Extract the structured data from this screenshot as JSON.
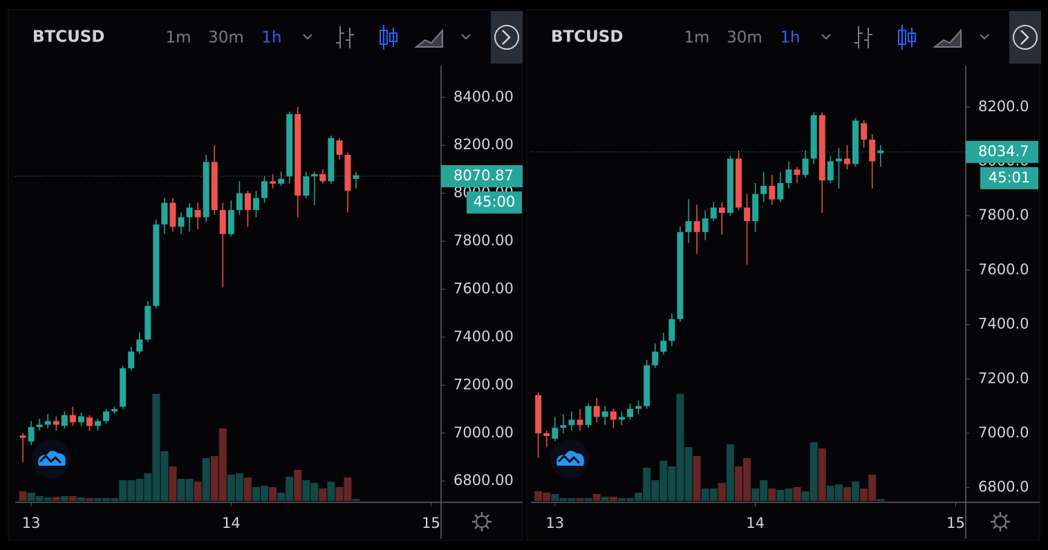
{
  "chart_data": [
    {
      "type": "candlestick",
      "title": "BTCUSD",
      "intervals": [
        "1m",
        "30m",
        "1h"
      ],
      "active_interval": 2,
      "x": [
        12.9583,
        13,
        13.0417,
        13.0833,
        13.125,
        13.1667,
        13.2083,
        13.25,
        13.2917,
        13.3333,
        13.375,
        13.4167,
        13.4583,
        13.5,
        13.5417,
        13.5833,
        13.625,
        13.6667,
        13.7083,
        13.75,
        13.7917,
        13.8333,
        13.875,
        13.9167,
        13.9583,
        14,
        14.0417,
        14.0833,
        14.125,
        14.1667,
        14.2083,
        14.25,
        14.2917,
        14.3333,
        14.375,
        14.4167,
        14.4583,
        14.5,
        14.5417,
        14.5833,
        14.625
      ],
      "open": [
        6990,
        6965,
        7025,
        7035,
        7050,
        7030,
        7075,
        7045,
        7065,
        7030,
        7050,
        7090,
        7110,
        7270,
        7340,
        7390,
        7530,
        7870,
        7960,
        7860,
        7900,
        7930,
        7900,
        8130,
        7930,
        7830,
        7930,
        8000,
        7930,
        7980,
        8050,
        8040,
        8070,
        8330,
        7990,
        8070,
        8080,
        8050,
        8220,
        8160,
        8060
      ],
      "high": [
        7000,
        7050,
        7060,
        7080,
        7070,
        7090,
        7110,
        7085,
        7075,
        7060,
        7100,
        7110,
        7280,
        7360,
        7420,
        7550,
        7890,
        7980,
        7980,
        7920,
        7960,
        7960,
        8160,
        8200,
        7960,
        7970,
        8050,
        8010,
        8010,
        8070,
        8080,
        8090,
        8340,
        8360,
        8090,
        8090,
        8100,
        8240,
        8230,
        8170,
        8090
      ],
      "low": [
        6880,
        6950,
        7010,
        7020,
        7010,
        7020,
        7030,
        7030,
        7010,
        7010,
        7040,
        7080,
        7100,
        7260,
        7330,
        7380,
        7520,
        7830,
        7840,
        7830,
        7840,
        7850,
        7880,
        7910,
        7610,
        7820,
        7910,
        7860,
        7900,
        7960,
        8020,
        8030,
        8040,
        7900,
        7980,
        7950,
        8040,
        8040,
        8140,
        7920,
        8020
      ],
      "close": [
        6980,
        7025,
        7035,
        7050,
        7035,
        7075,
        7045,
        7070,
        7030,
        7050,
        7090,
        7100,
        7270,
        7340,
        7390,
        7530,
        7870,
        7960,
        7860,
        7900,
        7940,
        7900,
        8130,
        7930,
        7830,
        7930,
        8000,
        7930,
        7980,
        8050,
        8040,
        8060,
        8330,
        7990,
        8070,
        8080,
        8050,
        8230,
        8160,
        8010,
        8075
      ],
      "volume": [
        14,
        12,
        7,
        5,
        6,
        7,
        7,
        5,
        4,
        4,
        4,
        4,
        30,
        30,
        32,
        40,
        155,
        72,
        50,
        32,
        32,
        28,
        62,
        65,
        105,
        38,
        40,
        34,
        20,
        22,
        20,
        12,
        35,
        45,
        30,
        26,
        18,
        28,
        20,
        34,
        3
      ],
      "xlim": [
        12.92,
        15.05
      ],
      "xticks": [
        13,
        14,
        15
      ],
      "ylim": [
        6717,
        8532
      ],
      "yticks": [
        {
          "value": 6800,
          "label": "6800.00"
        },
        {
          "value": 7000,
          "label": "7000.00"
        },
        {
          "value": 7200,
          "label": "7200.00"
        },
        {
          "value": 7400,
          "label": "7400.00"
        },
        {
          "value": 7600,
          "label": "7600.00"
        },
        {
          "value": 7800,
          "label": "7800.00"
        },
        {
          "value": 8000,
          "label": "8000.00"
        },
        {
          "value": 8200,
          "label": "8200.00"
        },
        {
          "value": 8400,
          "label": "8400.00"
        }
      ],
      "last_price": 8070.87,
      "countdown": "45:00",
      "up_color": "#26a69a",
      "down_color": "#ef5350",
      "active_color": "#2962ff"
    },
    {
      "type": "candlestick",
      "title": "BTCUSD",
      "intervals": [
        "1m",
        "30m",
        "1h"
      ],
      "active_interval": 2,
      "x": [
        12.9167,
        12.9583,
        13,
        13.0417,
        13.0833,
        13.125,
        13.1667,
        13.2083,
        13.25,
        13.2917,
        13.3333,
        13.375,
        13.4167,
        13.4583,
        13.5,
        13.5417,
        13.5833,
        13.625,
        13.6667,
        13.7083,
        13.75,
        13.7917,
        13.8333,
        13.875,
        13.9167,
        13.9583,
        14,
        14.0417,
        14.0833,
        14.125,
        14.1667,
        14.2083,
        14.25,
        14.2917,
        14.3333,
        14.375,
        14.4167,
        14.4583,
        14.5,
        14.5417,
        14.5833,
        14.625
      ],
      "open": [
        7140,
        7000,
        6980,
        7020,
        7030,
        7050,
        7030,
        7100,
        7060,
        7080,
        7050,
        7060,
        7090,
        7100,
        7250,
        7300,
        7340,
        7420,
        7740,
        7780,
        7740,
        7790,
        7830,
        7810,
        8010,
        7830,
        7780,
        7880,
        7910,
        7860,
        7920,
        7970,
        7950,
        8010,
        8170,
        7930,
        8000,
        8010,
        7990,
        8140,
        8080,
        8030
      ],
      "high": [
        7150,
        7010,
        7060,
        7070,
        7080,
        7090,
        7110,
        7130,
        7100,
        7090,
        7080,
        7110,
        7120,
        7270,
        7330,
        7370,
        7440,
        7760,
        7860,
        7840,
        7820,
        7850,
        7850,
        8020,
        8040,
        7880,
        7920,
        7960,
        7950,
        7960,
        8000,
        7980,
        8040,
        8180,
        8180,
        8020,
        8050,
        8060,
        8160,
        8150,
        8100,
        8060
      ],
      "low": [
        6910,
        6950,
        6970,
        7000,
        7010,
        7010,
        7020,
        7040,
        7030,
        7020,
        7030,
        7050,
        7070,
        7090,
        7240,
        7290,
        7320,
        7410,
        7700,
        7660,
        7710,
        7780,
        7730,
        7800,
        7820,
        7620,
        7740,
        7850,
        7840,
        7850,
        7900,
        7920,
        7940,
        7990,
        7810,
        7920,
        7900,
        7970,
        7980,
        8050,
        7900,
        7980
      ],
      "close": [
        7000,
        6990,
        7020,
        7030,
        7050,
        7030,
        7100,
        7060,
        7080,
        7050,
        7060,
        7090,
        7100,
        7250,
        7300,
        7340,
        7420,
        7740,
        7780,
        7740,
        7790,
        7830,
        7810,
        8010,
        7830,
        7780,
        7880,
        7910,
        7860,
        7920,
        7970,
        7950,
        8010,
        8170,
        7930,
        8000,
        8010,
        7990,
        8150,
        8080,
        8000,
        8040
      ],
      "volume": [
        14,
        12,
        10,
        4,
        4,
        4,
        4,
        10,
        6,
        6,
        4,
        4,
        12,
        48,
        30,
        58,
        50,
        155,
        78,
        65,
        18,
        18,
        26,
        82,
        50,
        62,
        18,
        30,
        18,
        16,
        18,
        20,
        14,
        85,
        76,
        22,
        24,
        20,
        28,
        18,
        38,
        3
      ],
      "xlim": [
        12.88,
        15.05
      ],
      "xticks": [
        13,
        14,
        15
      ],
      "ylim": [
        6751,
        8352
      ],
      "yticks": [
        {
          "value": 6800,
          "label": "6800.0"
        },
        {
          "value": 7000,
          "label": "7000.0"
        },
        {
          "value": 7200,
          "label": "7200.0"
        },
        {
          "value": 7400,
          "label": "7400.0"
        },
        {
          "value": 7600,
          "label": "7600.0"
        },
        {
          "value": 7800,
          "label": "7800.0"
        },
        {
          "value": 8000,
          "label": "8000.0"
        },
        {
          "value": 8200,
          "label": "8200.0"
        }
      ],
      "last_price": 8034.7,
      "countdown": "45:01",
      "up_color": "#26a69a",
      "down_color": "#ef5350",
      "active_color": "#2962ff"
    }
  ]
}
